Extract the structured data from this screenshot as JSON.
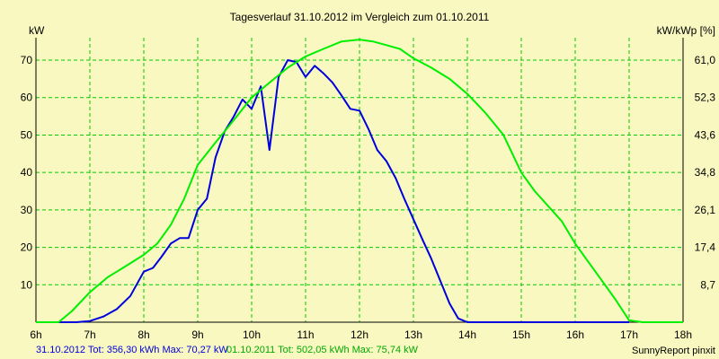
{
  "chart_data": {
    "type": "line",
    "title": "Tagesverlauf 31.10.2012 im Vergleich zum 01.10.2011",
    "ylabel_left": "kW",
    "ylabel_right": "kW/kWp [%]",
    "x_ticks": [
      "6h",
      "7h",
      "8h",
      "9h",
      "10h",
      "11h",
      "12h",
      "13h",
      "14h",
      "15h",
      "16h",
      "17h",
      "18h"
    ],
    "xlim": [
      6,
      18
    ],
    "ylim": [
      0,
      76
    ],
    "y_ticks_left": [
      10,
      20,
      30,
      40,
      50,
      60,
      70
    ],
    "y_ticks_right_values": [
      8.7,
      17.4,
      26.1,
      34.8,
      43.6,
      52.3,
      61.0
    ],
    "y_ticks_right_labels": [
      "8,7",
      "17,4",
      "26,1",
      "34,8",
      "43,6",
      "52,3",
      "61,0"
    ],
    "grid": true,
    "series": [
      {
        "name": "31.10.2012",
        "color": "#0000dd",
        "x": [
          6.0,
          6.75,
          7.0,
          7.25,
          7.5,
          7.75,
          8.0,
          8.17,
          8.33,
          8.5,
          8.67,
          8.83,
          9.0,
          9.17,
          9.33,
          9.5,
          9.67,
          9.83,
          10.0,
          10.17,
          10.33,
          10.5,
          10.67,
          10.83,
          11.0,
          11.17,
          11.33,
          11.5,
          11.67,
          11.83,
          12.0,
          12.17,
          12.33,
          12.5,
          12.67,
          12.83,
          13.0,
          13.17,
          13.33,
          13.5,
          13.67,
          13.83,
          14.0,
          14.17,
          14.33,
          14.5,
          14.67,
          14.83,
          15.0,
          15.17,
          15.33,
          15.5,
          15.67,
          15.83,
          16.0,
          16.17,
          16.33,
          16.5,
          16.67,
          17.0
        ],
        "values": [
          0,
          0,
          0.3,
          1.5,
          3.5,
          7.0,
          13.5,
          14.5,
          17.5,
          21.0,
          22.5,
          22.5,
          30.0,
          33.0,
          44.0,
          51.0,
          55.0,
          59.5,
          57.0,
          63.0,
          46.0,
          65.5,
          70.0,
          69.5,
          65.5,
          68.5,
          66.5,
          64.0,
          60.5,
          57.0,
          56.5,
          51.5,
          46.0,
          43.0,
          38.5,
          33.0,
          27.5,
          22.0,
          17.0,
          11.0,
          5.0,
          1.0,
          0,
          0,
          0,
          0,
          0,
          0,
          0,
          0,
          0,
          0,
          0,
          0,
          0,
          0,
          0,
          0,
          0,
          0
        ]
      },
      {
        "name": "01.10.2011",
        "color": "#00ee00",
        "x": [
          6.0,
          6.42,
          6.67,
          7.0,
          7.33,
          7.67,
          8.0,
          8.25,
          8.5,
          8.75,
          9.0,
          9.33,
          9.67,
          10.0,
          10.33,
          10.67,
          11.0,
          11.33,
          11.67,
          12.0,
          12.25,
          12.5,
          12.75,
          13.0,
          13.33,
          13.67,
          14.0,
          14.33,
          14.67,
          15.0,
          15.25,
          15.5,
          15.75,
          16.0,
          16.25,
          16.5,
          16.75,
          17.0,
          17.25,
          17.5,
          17.75,
          18.0
        ],
        "values": [
          0,
          0,
          3,
          8,
          12,
          15,
          18,
          21,
          26,
          33,
          42,
          48,
          54,
          60,
          64,
          68,
          71,
          73,
          75,
          75.5,
          75,
          74,
          73,
          70.5,
          68,
          65,
          61,
          56,
          50,
          40,
          35,
          31,
          27,
          21,
          16,
          11,
          6,
          0.5,
          0,
          0,
          0,
          0
        ]
      }
    ]
  },
  "footer": {
    "left_text_1": "31.10.2012  Tot: 356,30 kWh Max: 70,27 kW",
    "left_text_2": "01.10.2011  Tot: 502,05 kWh Max: 75,74 kW",
    "right_text": "SunnyReport pinxit"
  },
  "colors": {
    "background": "#f8f8c0",
    "grid": "#00cc00",
    "axis": "#000000"
  }
}
